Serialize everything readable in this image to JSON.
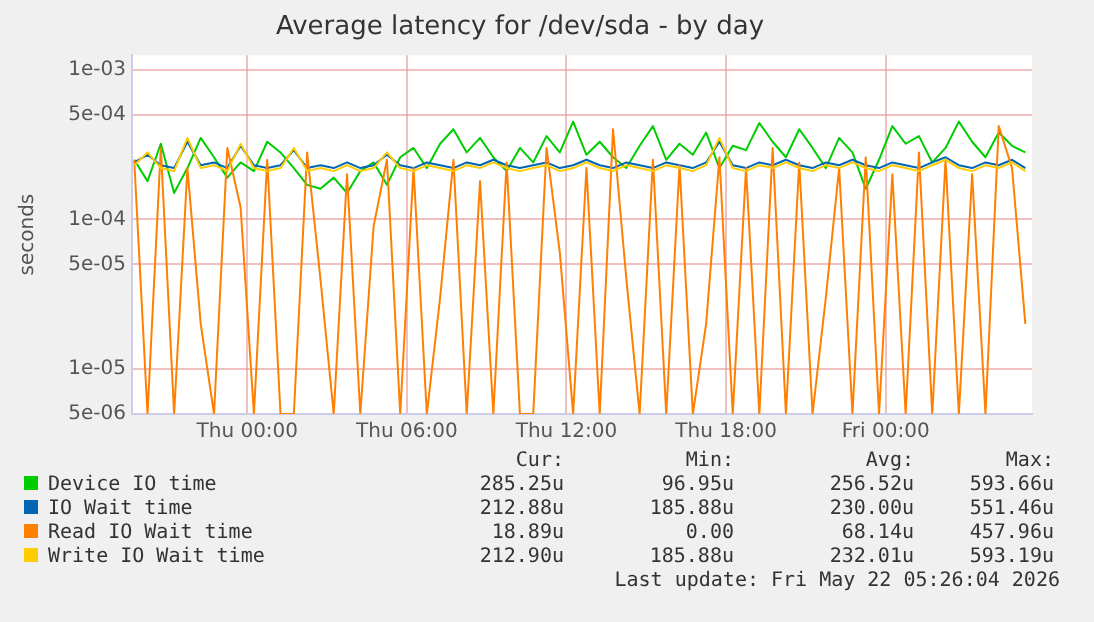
{
  "chart_data": {
    "type": "line",
    "title": "Average latency for /dev/sda - by day",
    "ylabel": "seconds",
    "x": [
      "2026-05-20T19:45",
      "2026-05-20T20:15",
      "2026-05-20T20:45",
      "2026-05-20T21:15",
      "2026-05-20T21:45",
      "2026-05-20T22:15",
      "2026-05-20T22:45",
      "2026-05-20T23:15",
      "2026-05-20T23:45",
      "2026-05-21T00:15",
      "2026-05-21T00:45",
      "2026-05-21T01:15",
      "2026-05-21T01:45",
      "2026-05-21T02:15",
      "2026-05-21T02:45",
      "2026-05-21T03:15",
      "2026-05-21T03:45",
      "2026-05-21T04:15",
      "2026-05-21T04:45",
      "2026-05-21T05:15",
      "2026-05-21T05:45",
      "2026-05-21T06:15",
      "2026-05-21T06:45",
      "2026-05-21T07:15",
      "2026-05-21T07:45",
      "2026-05-21T08:15",
      "2026-05-21T08:45",
      "2026-05-21T09:15",
      "2026-05-21T09:45",
      "2026-05-21T10:15",
      "2026-05-21T10:45",
      "2026-05-21T11:15",
      "2026-05-21T11:45",
      "2026-05-21T12:15",
      "2026-05-21T12:45",
      "2026-05-21T13:15",
      "2026-05-21T13:45",
      "2026-05-21T14:15",
      "2026-05-21T14:45",
      "2026-05-21T15:15",
      "2026-05-21T15:45",
      "2026-05-21T16:15",
      "2026-05-21T16:45",
      "2026-05-21T17:15",
      "2026-05-21T17:45",
      "2026-05-21T18:15",
      "2026-05-21T18:45",
      "2026-05-21T19:15",
      "2026-05-21T19:45",
      "2026-05-21T20:15",
      "2026-05-21T20:45",
      "2026-05-21T21:15",
      "2026-05-21T21:45",
      "2026-05-21T22:15",
      "2026-05-21T22:45",
      "2026-05-21T23:15",
      "2026-05-21T23:45",
      "2026-05-22T00:15",
      "2026-05-22T00:45",
      "2026-05-22T01:15",
      "2026-05-22T01:45",
      "2026-05-22T02:15",
      "2026-05-22T02:45",
      "2026-05-22T03:15",
      "2026-05-22T03:45",
      "2026-05-22T04:15",
      "2026-05-22T04:45",
      "2026-05-22T05:15"
    ],
    "series": [
      {
        "name": "Device IO time",
        "color": "#00cc00",
        "values": [
          0.00025,
          0.00018,
          0.00032,
          0.00015,
          0.00022,
          0.00035,
          0.00026,
          0.00019,
          0.00024,
          0.00021,
          0.00033,
          0.00028,
          0.00022,
          0.00017,
          0.00016,
          0.00019,
          0.00015,
          0.00021,
          0.00024,
          0.00017,
          0.00026,
          0.0003,
          0.00022,
          0.00032,
          0.0004,
          0.00028,
          0.00035,
          0.00026,
          0.00021,
          0.0003,
          0.00024,
          0.00036,
          0.00028,
          0.00045,
          0.00027,
          0.00033,
          0.00026,
          0.00022,
          0.00031,
          0.00042,
          0.00025,
          0.00032,
          0.00027,
          0.00038,
          0.00022,
          0.00031,
          0.00029,
          0.00044,
          0.00033,
          0.00026,
          0.0004,
          0.0003,
          0.00022,
          0.00035,
          0.00028,
          0.00016,
          0.00025,
          0.00042,
          0.00032,
          0.00036,
          0.00024,
          0.0003,
          0.00045,
          0.00033,
          0.00026,
          0.00038,
          0.00031,
          0.00028
        ]
      },
      {
        "name": "IO Wait time",
        "color": "#0066b3",
        "values": [
          0.00024,
          0.00027,
          0.00023,
          0.00022,
          0.00033,
          0.00023,
          0.00024,
          0.00022,
          0.00031,
          0.00023,
          0.00022,
          0.00023,
          0.00029,
          0.00022,
          0.00023,
          0.00022,
          0.00024,
          0.00022,
          0.00023,
          0.00027,
          0.00023,
          0.00022,
          0.00024,
          0.00023,
          0.00022,
          0.00024,
          0.00023,
          0.00025,
          0.00023,
          0.00022,
          0.00023,
          0.00024,
          0.00022,
          0.00023,
          0.00025,
          0.00023,
          0.00022,
          0.00024,
          0.00023,
          0.00022,
          0.00024,
          0.00023,
          0.00022,
          0.00024,
          0.00033,
          0.00023,
          0.00022,
          0.00024,
          0.00023,
          0.00025,
          0.00023,
          0.00022,
          0.00024,
          0.00023,
          0.00025,
          0.00023,
          0.00022,
          0.00024,
          0.00023,
          0.00022,
          0.00024,
          0.00026,
          0.00023,
          0.00022,
          0.00024,
          0.00023,
          0.00025,
          0.00022
        ]
      },
      {
        "name": "Read IO Wait time",
        "color": "#ff8000",
        "values": [
          0.00025,
          5e-06,
          0.0003,
          5e-06,
          0.00022,
          2e-05,
          5e-06,
          0.0003,
          0.00012,
          5e-06,
          0.00025,
          5e-06,
          5e-06,
          0.00028,
          4e-05,
          5e-06,
          0.0002,
          5e-06,
          9e-05,
          0.00025,
          5e-06,
          0.00022,
          5e-06,
          3e-05,
          0.00025,
          5e-06,
          0.00018,
          5e-06,
          0.00024,
          5e-06,
          5e-06,
          0.0003,
          6e-05,
          5e-06,
          0.00022,
          5e-06,
          0.0004,
          4e-05,
          5e-06,
          0.00025,
          5e-06,
          0.00023,
          5e-06,
          2e-05,
          0.00026,
          5e-06,
          0.00022,
          5e-06,
          0.0003,
          5e-06,
          0.00024,
          5e-06,
          3e-05,
          0.00022,
          5e-06,
          0.00026,
          5e-06,
          0.0002,
          5e-06,
          0.00028,
          5e-06,
          0.00025,
          5e-06,
          0.0002,
          5e-06,
          0.00042,
          0.00022,
          2e-05
        ]
      },
      {
        "name": "Write IO Wait time",
        "color": "#ffcc00",
        "values": [
          0.00023,
          0.00028,
          0.00022,
          0.00021,
          0.00035,
          0.00022,
          0.00023,
          0.00021,
          0.00032,
          0.00022,
          0.00021,
          0.00022,
          0.0003,
          0.00021,
          0.00022,
          0.00021,
          0.00023,
          0.00021,
          0.00022,
          0.00028,
          0.00022,
          0.00021,
          0.00023,
          0.00022,
          0.00021,
          0.00023,
          0.00022,
          0.00024,
          0.00022,
          0.00021,
          0.00022,
          0.00023,
          0.00021,
          0.00022,
          0.00024,
          0.00022,
          0.00021,
          0.00023,
          0.00022,
          0.00021,
          0.00023,
          0.00022,
          0.00021,
          0.00023,
          0.00035,
          0.00022,
          0.00021,
          0.00023,
          0.00022,
          0.00024,
          0.00022,
          0.00021,
          0.00023,
          0.00022,
          0.00024,
          0.00022,
          0.00021,
          0.00023,
          0.00022,
          0.00021,
          0.00023,
          0.00025,
          0.00022,
          0.00021,
          0.00023,
          0.00022,
          0.00024,
          0.00021
        ]
      }
    ],
    "xlim": [
      "2026-05-20T19:40",
      "2026-05-22T05:30"
    ],
    "xticks": [
      {
        "value": "2026-05-21T00:00",
        "label": "Thu 00:00"
      },
      {
        "value": "2026-05-21T06:00",
        "label": "Thu 06:00"
      },
      {
        "value": "2026-05-21T12:00",
        "label": "Thu 12:00"
      },
      {
        "value": "2026-05-21T18:00",
        "label": "Thu 18:00"
      },
      {
        "value": "2026-05-22T00:00",
        "label": "Fri 00:00"
      }
    ],
    "ylim": [
      5e-06,
      0.00125
    ],
    "yticks": [
      {
        "value": 5e-06,
        "label": "5e-06"
      },
      {
        "value": 1e-05,
        "label": "1e-05"
      },
      {
        "value": 5e-05,
        "label": "5e-05"
      },
      {
        "value": 0.0001,
        "label": "1e-04"
      },
      {
        "value": 0.0005,
        "label": "5e-04"
      },
      {
        "value": 0.001,
        "label": "1e-03"
      }
    ],
    "log": "y",
    "grid": true,
    "legend": "bottom",
    "marker": "none",
    "line_style": "solid",
    "annotations": [
      "Cur:",
      "Min:",
      "Avg:",
      "Max:",
      "285.25u 96.95u 256.52u 593.66u",
      "212.88u 185.88u 230.00u 551.46u",
      "18.89u 0.00 68.14u 457.96u",
      "212.90u 185.88u 232.01u 593.19u",
      "Last update: Fri May 22 05:26:04 2026"
    ]
  }
}
